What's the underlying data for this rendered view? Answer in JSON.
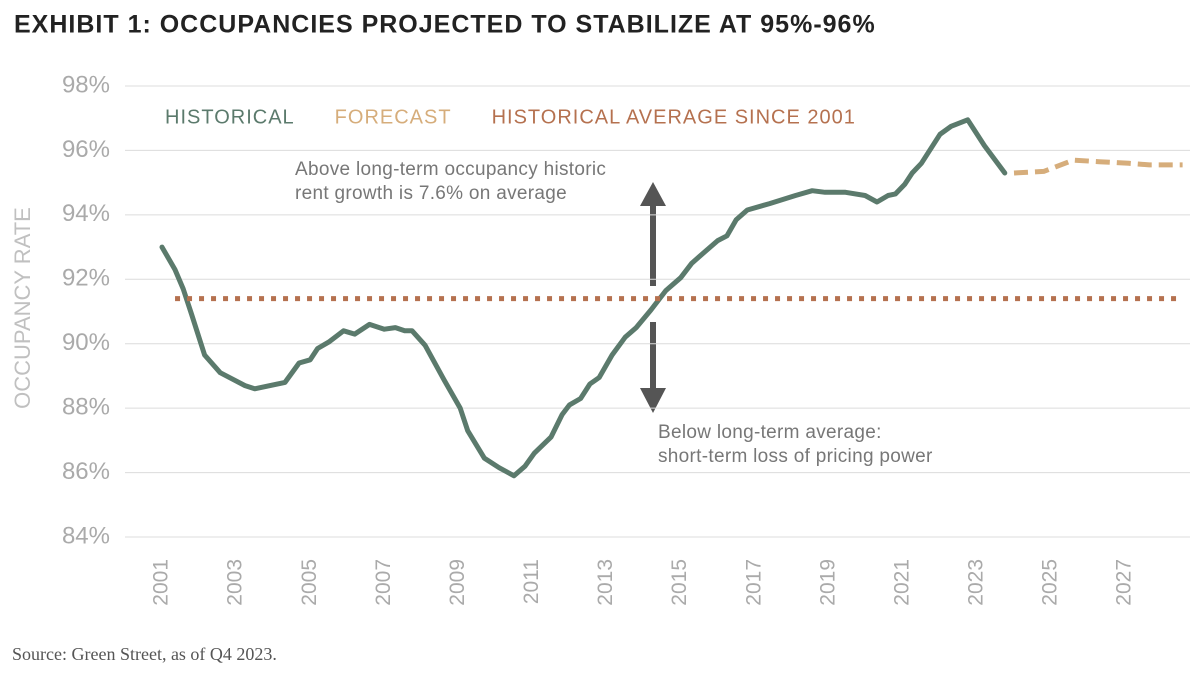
{
  "chart_data": {
    "type": "line",
    "title": "EXHIBIT 1: OCCUPANCIES PROJECTED TO STABILIZE AT 95%-96%",
    "ylabel": "OCCUPANCY RATE",
    "source": "Source: Green Street, as of Q4 2023.",
    "xlim": [
      2000,
      2028.75
    ],
    "xticks": [
      2001,
      2003,
      2005,
      2007,
      2009,
      2011,
      2013,
      2015,
      2017,
      2019,
      2021,
      2023,
      2025,
      2027
    ],
    "ylim": [
      84,
      98
    ],
    "yticks": [
      {
        "value": 84,
        "label": "84%"
      },
      {
        "value": 86,
        "label": "86%"
      },
      {
        "value": 88,
        "label": "88%"
      },
      {
        "value": 90,
        "label": "90%"
      },
      {
        "value": 92,
        "label": "92%"
      },
      {
        "value": 94,
        "label": "94%"
      },
      {
        "value": 96,
        "label": "96%"
      },
      {
        "value": 98,
        "label": "98%"
      }
    ],
    "grid": true,
    "legend": "top-left",
    "series": [
      {
        "name": "HISTORICAL",
        "color": "#5b7a6c",
        "style": "solid",
        "x": [
          2001.0,
          2001.35,
          2001.57,
          2001.8,
          2002.15,
          2002.57,
          2003.24,
          2003.5,
          2004.32,
          2004.7,
          2005.0,
          2005.2,
          2005.5,
          2005.9,
          2006.2,
          2006.6,
          2007.0,
          2007.3,
          2007.55,
          2007.75,
          2008.1,
          2008.6,
          2009.05,
          2009.25,
          2009.7,
          2010.1,
          2010.5,
          2010.8,
          2011.05,
          2011.5,
          2011.8,
          2012.0,
          2012.3,
          2012.55,
          2012.8,
          2013.15,
          2013.5,
          2013.8,
          2014.2,
          2014.6,
          2015.0,
          2015.3,
          2015.55,
          2016.0,
          2016.25,
          2016.5,
          2016.8,
          2017.4,
          2018.1,
          2018.55,
          2018.9,
          2019.1,
          2019.45,
          2019.98,
          2020.3,
          2020.6,
          2020.8,
          2021.05,
          2021.25,
          2021.5,
          2022.0,
          2022.3,
          2022.75,
          2023.2,
          2023.75
        ],
        "values": [
          93.0,
          92.3,
          91.7,
          90.9,
          89.65,
          89.1,
          88.7,
          88.6,
          88.8,
          89.4,
          89.5,
          89.85,
          90.05,
          90.4,
          90.3,
          90.6,
          90.45,
          90.5,
          90.4,
          90.4,
          89.95,
          88.9,
          88.0,
          87.3,
          86.45,
          86.15,
          85.9,
          86.2,
          86.6,
          87.1,
          87.8,
          88.1,
          88.3,
          88.75,
          88.95,
          89.65,
          90.2,
          90.5,
          91.05,
          91.65,
          92.05,
          92.5,
          92.75,
          93.2,
          93.35,
          93.85,
          94.15,
          94.35,
          94.6,
          94.75,
          94.7,
          94.7,
          94.7,
          94.6,
          94.4,
          94.6,
          94.65,
          94.95,
          95.3,
          95.6,
          96.5,
          96.75,
          96.95,
          96.15,
          95.3
        ]
      },
      {
        "name": "FORECAST",
        "color": "#d6ad7b",
        "style": "dashed",
        "x": [
          2024.0,
          2024.8,
          2025.6,
          2026.3,
          2027.1,
          2027.65,
          2028.55
        ],
        "values": [
          95.3,
          95.35,
          95.7,
          95.65,
          95.6,
          95.55,
          95.55
        ]
      },
      {
        "name": "HISTORICAL AVERAGE SINCE 2001",
        "color": "#b5714f",
        "style": "dotted",
        "values": [
          91.4
        ]
      }
    ],
    "annotations": [
      {
        "lines": [
          "Above long-term occupancy historic",
          "rent growth is 7.6% on average"
        ]
      },
      {
        "lines": [
          "Below long-term average:",
          "short-term loss of pricing power"
        ]
      }
    ]
  }
}
